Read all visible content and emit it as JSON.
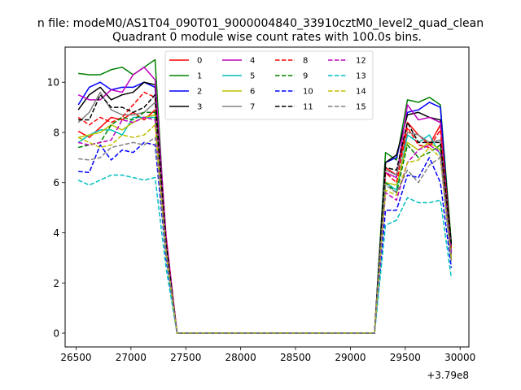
{
  "chart_data": {
    "type": "line",
    "suptitle": "n file: modeM0/AS1T04_090T01_9000004840_33910cztM0_level2_quad_clean",
    "title": "Quadrant 0 module wise count rates with 100.0s bins.",
    "xlabel": "",
    "ylabel": "",
    "x_offset_label": "+3.79e8",
    "xlim": [
      26400,
      30080
    ],
    "ylim": [
      -0.55,
      11.4
    ],
    "x_ticks": [
      26500,
      27000,
      27500,
      28000,
      28500,
      29000,
      29500,
      30000
    ],
    "x_tick_labels": [
      "26500",
      "27000",
      "27500",
      "28000",
      "28500",
      "29000",
      "29500",
      "30000"
    ],
    "y_ticks": [
      0,
      2,
      4,
      6,
      8,
      10
    ],
    "y_tick_labels": [
      "0",
      "2",
      "4",
      "6",
      "8",
      "10"
    ],
    "grid": false,
    "legend_placement": "upper-center",
    "legend_columns": 4,
    "x": [
      26520,
      26620,
      26720,
      26820,
      26920,
      27020,
      27120,
      27220,
      27320,
      27420,
      29220,
      29320,
      29420,
      29520,
      29620,
      29720,
      29820,
      29920
    ],
    "series": [
      {
        "name": "0",
        "color": "#ff0000",
        "dash": "solid",
        "values": [
          8.05,
          7.8,
          8.2,
          8.6,
          8.5,
          8.8,
          8.5,
          8.9,
          3.8,
          0,
          0,
          6.6,
          6.3,
          8.4,
          7.9,
          7.5,
          8.3,
          3.3
        ]
      },
      {
        "name": "1",
        "color": "#008000",
        "dash": "solid",
        "values": [
          10.35,
          10.3,
          10.3,
          10.5,
          10.6,
          10.3,
          10.6,
          10.9,
          3.5,
          0,
          0,
          7.2,
          6.9,
          9.3,
          9.2,
          9.4,
          9.1,
          3.6
        ]
      },
      {
        "name": "2",
        "color": "#0000ff",
        "dash": "solid",
        "values": [
          9.1,
          9.8,
          10.0,
          9.7,
          9.8,
          9.8,
          10.0,
          9.8,
          3.6,
          0,
          0,
          6.8,
          7.0,
          8.8,
          8.9,
          9.2,
          9.0,
          3.2
        ]
      },
      {
        "name": "3",
        "color": "#000000",
        "dash": "solid",
        "values": [
          8.9,
          9.5,
          9.8,
          9.3,
          9.5,
          9.6,
          10.0,
          9.9,
          3.7,
          0,
          0,
          6.8,
          7.1,
          8.7,
          8.8,
          8.6,
          8.5,
          3.5
        ]
      },
      {
        "name": "4",
        "color": "#bf00bf",
        "dash": "solid",
        "values": [
          9.5,
          9.3,
          9.3,
          9.7,
          9.6,
          10.3,
          10.6,
          10.1,
          3.9,
          0,
          0,
          6.4,
          6.2,
          9.1,
          8.5,
          8.6,
          8.4,
          3.2
        ]
      },
      {
        "name": "5",
        "color": "#00bfbf",
        "dash": "solid",
        "values": [
          7.6,
          7.9,
          8.1,
          8.1,
          7.9,
          8.6,
          8.6,
          8.6,
          3.2,
          0,
          0,
          6.0,
          5.7,
          7.9,
          7.6,
          7.9,
          7.1,
          2.9
        ]
      },
      {
        "name": "6",
        "color": "#bfbf00",
        "dash": "solid",
        "values": [
          7.8,
          7.9,
          8.0,
          8.3,
          8.1,
          8.4,
          8.6,
          8.7,
          3.1,
          0,
          0,
          6.0,
          5.9,
          7.6,
          7.3,
          7.6,
          7.3,
          3.0
        ]
      },
      {
        "name": "7",
        "color": "#808080",
        "dash": "solid",
        "values": [
          8.4,
          8.8,
          9.6,
          8.9,
          8.7,
          8.7,
          8.8,
          9.2,
          3.5,
          0,
          0,
          6.5,
          6.3,
          8.0,
          7.9,
          7.6,
          7.7,
          3.3
        ]
      },
      {
        "name": "8",
        "color": "#ff0000",
        "dash": "dashed",
        "values": [
          8.6,
          8.3,
          8.6,
          8.4,
          8.6,
          9.1,
          9.6,
          9.4,
          3.7,
          0,
          0,
          6.4,
          6.0,
          8.2,
          7.5,
          7.4,
          8.1,
          3.4
        ]
      },
      {
        "name": "9",
        "color": "#008000",
        "dash": "dashed",
        "values": [
          7.4,
          7.5,
          7.6,
          8.3,
          8.6,
          8.5,
          8.8,
          8.8,
          3.3,
          0,
          0,
          6.0,
          5.6,
          7.5,
          7.0,
          7.2,
          7.5,
          3.1
        ]
      },
      {
        "name": "10",
        "color": "#0000ff",
        "dash": "dashed",
        "values": [
          6.45,
          6.4,
          7.5,
          6.9,
          7.3,
          7.2,
          7.6,
          7.5,
          3.0,
          0,
          0,
          4.9,
          4.9,
          6.3,
          6.2,
          7.0,
          6.0,
          2.6
        ]
      },
      {
        "name": "11",
        "color": "#000000",
        "dash": "dashed",
        "values": [
          8.5,
          8.5,
          9.5,
          9.0,
          9.0,
          8.8,
          9.0,
          9.5,
          3.6,
          0,
          0,
          6.6,
          6.5,
          8.4,
          7.6,
          7.6,
          7.6,
          3.5
        ]
      },
      {
        "name": "12",
        "color": "#bf00bf",
        "dash": "dashed",
        "values": [
          7.6,
          7.5,
          7.6,
          7.7,
          8.5,
          8.4,
          8.6,
          8.5,
          3.2,
          0,
          0,
          5.6,
          5.3,
          6.8,
          7.3,
          7.5,
          7.2,
          3.1
        ]
      },
      {
        "name": "13",
        "color": "#00bfbf",
        "dash": "dashed",
        "values": [
          6.1,
          5.9,
          6.1,
          6.3,
          6.3,
          6.2,
          6.1,
          6.2,
          2.6,
          0,
          0,
          4.3,
          4.5,
          5.4,
          5.2,
          5.2,
          5.3,
          2.2
        ]
      },
      {
        "name": "14",
        "color": "#bfbf00",
        "dash": "dashed",
        "values": [
          7.8,
          7.6,
          7.4,
          7.5,
          7.9,
          7.8,
          7.9,
          8.3,
          3.2,
          0,
          0,
          5.7,
          5.5,
          6.8,
          6.9,
          7.4,
          7.0,
          2.9
        ]
      },
      {
        "name": "15",
        "color": "#808080",
        "dash": "dashed",
        "values": [
          6.95,
          6.9,
          7.0,
          7.4,
          7.5,
          7.6,
          7.5,
          7.8,
          3.2,
          0,
          0,
          5.9,
          5.6,
          6.5,
          6.0,
          6.7,
          7.0,
          2.8
        ]
      }
    ]
  }
}
